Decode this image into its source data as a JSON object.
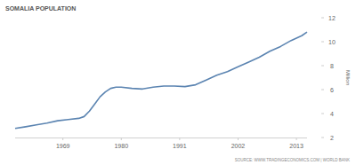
{
  "chart_data": {
    "type": "line",
    "title": "SOMALIA POPULATION",
    "y_label": "Million",
    "source": "SOURCE: WWW.TRADINGECONOMICS.COM | WORLD BANK",
    "x": [
      1960,
      1962,
      1964,
      1966,
      1968,
      1970,
      1972,
      1973,
      1974,
      1975,
      1976,
      1977,
      1978,
      1979,
      1980,
      1982,
      1984,
      1986,
      1988,
      1990,
      1992,
      1994,
      1996,
      1998,
      2000,
      2002,
      2004,
      2006,
      2008,
      2010,
      2012,
      2014,
      2015
    ],
    "series": [
      {
        "name": "Population",
        "color": "#5b84b1",
        "values": [
          2.76,
          2.9,
          3.05,
          3.2,
          3.4,
          3.5,
          3.6,
          3.75,
          4.2,
          4.8,
          5.4,
          5.8,
          6.1,
          6.2,
          6.2,
          6.1,
          6.05,
          6.2,
          6.3,
          6.3,
          6.25,
          6.4,
          6.8,
          7.2,
          7.5,
          7.9,
          8.3,
          8.7,
          9.2,
          9.6,
          10.1,
          10.5,
          10.8
        ]
      }
    ],
    "xlim": [
      1960,
      2015
    ],
    "xticks": [
      1969,
      1980,
      1991,
      2002,
      2013
    ],
    "ylim": [
      2,
      12
    ],
    "yticks": [
      2,
      4,
      6,
      8,
      10,
      12
    ],
    "grid": false
  }
}
